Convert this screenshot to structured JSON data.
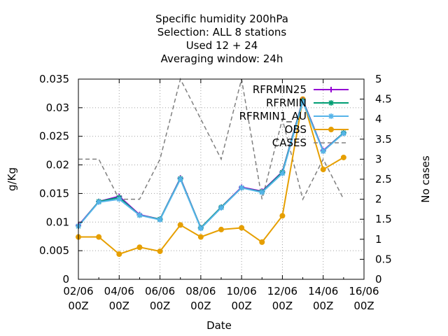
{
  "chart_data": {
    "type": "line",
    "title_lines": [
      "Specific humidity 200hPa",
      "Selection: ALL      8 stations",
      "Used  12 + 24",
      "Averaging window: 24h"
    ],
    "xlabel": "Date",
    "ylabel": "g/Kg",
    "y2label": "No cases",
    "x_tick_labels": [
      [
        "02/06",
        "00Z"
      ],
      [
        "04/06",
        "00Z"
      ],
      [
        "06/06",
        "00Z"
      ],
      [
        "08/06",
        "00Z"
      ],
      [
        "10/06",
        "00Z"
      ],
      [
        "12/06",
        "00Z"
      ],
      [
        "14/06",
        "00Z"
      ],
      [
        "16/06",
        "00Z"
      ]
    ],
    "xlim": [
      0,
      14
    ],
    "ylim": [
      0,
      0.035
    ],
    "y_ticks": [
      "0",
      "0.005",
      "0.01",
      "0.015",
      "0.02",
      "0.025",
      "0.03",
      "0.035"
    ],
    "y2lim": [
      0,
      5
    ],
    "y2_ticks": [
      "0",
      "0.5",
      "1",
      "1.5",
      "2",
      "2.5",
      "3",
      "3.5",
      "4",
      "4.5",
      "5"
    ],
    "grid": true,
    "legend_position": "top-right",
    "series": [
      {
        "name": "RFRMIN25",
        "color": "#9400d3",
        "marker": "plus",
        "x": [
          0,
          1,
          2,
          3,
          4,
          5,
          6,
          7,
          8,
          9,
          10,
          11,
          12,
          13
        ],
        "y": [
          0.0094,
          0.0136,
          0.0145,
          0.0113,
          0.0105,
          0.0177,
          0.009,
          0.0126,
          0.0161,
          0.0154,
          0.0188,
          0.0313,
          0.0225,
          0.0256
        ]
      },
      {
        "name": "RFRMIN",
        "color": "#009e73",
        "marker": "star",
        "x": [
          0,
          1,
          2,
          3,
          4,
          5,
          6,
          7,
          8,
          9,
          10,
          11,
          12,
          13
        ],
        "y": [
          0.0093,
          0.0136,
          0.0143,
          0.0112,
          0.0105,
          0.0176,
          0.009,
          0.0126,
          0.016,
          0.0153,
          0.0187,
          0.0312,
          0.0224,
          0.0256
        ]
      },
      {
        "name": "RFRMIN1_AU",
        "color": "#56b4e9",
        "marker": "star",
        "x": [
          0,
          1,
          2,
          3,
          4,
          5,
          6,
          7,
          8,
          9,
          10,
          11,
          12,
          13
        ],
        "y": [
          0.0093,
          0.0135,
          0.014,
          0.0112,
          0.0104,
          0.0175,
          0.0089,
          0.0125,
          0.016,
          0.0152,
          0.0185,
          0.031,
          0.0224,
          0.0255
        ]
      },
      {
        "name": "OBS",
        "color": "#e69f00",
        "marker": "circle",
        "x": [
          0,
          1,
          2,
          3,
          4,
          5,
          6,
          7,
          8,
          9,
          10,
          11,
          12,
          13
        ],
        "y": [
          0.0074,
          0.0074,
          0.0044,
          0.0056,
          0.0049,
          0.0095,
          0.0074,
          0.0087,
          0.009,
          0.0065,
          0.0111,
          0.0315,
          0.0192,
          0.0213
        ]
      },
      {
        "name": "CASES",
        "color": "#808080",
        "marker": "none",
        "dash": true,
        "axis": "y2",
        "x": [
          0,
          1,
          2,
          3,
          4,
          5,
          6,
          7,
          8,
          9,
          10,
          11,
          12,
          13
        ],
        "y": [
          3,
          3,
          2,
          2,
          3,
          5,
          4,
          3,
          5,
          2,
          4,
          2,
          3,
          2
        ]
      }
    ]
  }
}
